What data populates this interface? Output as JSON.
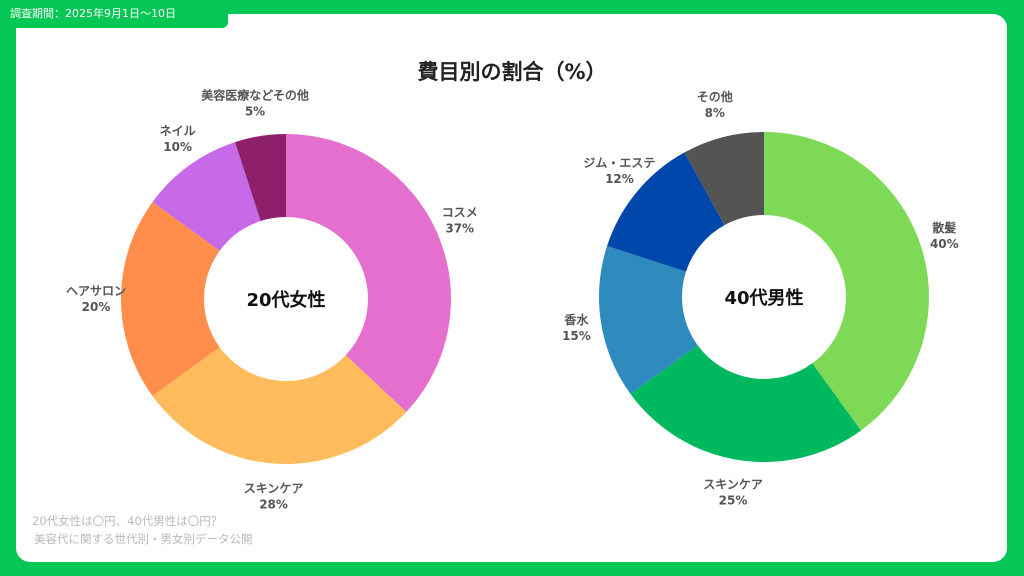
{
  "header": {
    "survey_period": "調査期間：2025年9月1日〜10日",
    "title": "費目別の割合（%）"
  },
  "footer": {
    "line1": "20代女性は〇円、40代男性は〇円？",
    "line2": "美容代に関する世代別・男女別データ公開"
  },
  "chart_data": [
    {
      "type": "pie",
      "title": "20代女性",
      "categories": [
        "コスメ",
        "スキンケア",
        "ヘアサロン",
        "ネイル",
        "美容医療などその他"
      ],
      "values": [
        37,
        28,
        20,
        10,
        5
      ],
      "value_labels": [
        "37%",
        "28%",
        "20%",
        "10%",
        "5%"
      ],
      "colors": [
        "#e56fcf",
        "#ffbb5c",
        "#ff8e4d",
        "#c76ae8",
        "#8e1f6b"
      ],
      "donut": true
    },
    {
      "type": "pie",
      "title": "40代男性",
      "categories": [
        "散髪",
        "スキンケア",
        "香水",
        "ジム・エステ",
        "その他"
      ],
      "values": [
        40,
        25,
        15,
        12,
        8
      ],
      "value_labels": [
        "40%",
        "25%",
        "15%",
        "12%",
        "8%"
      ],
      "colors": [
        "#7ed957",
        "#00b85e",
        "#2f8bbd",
        "#0047ab",
        "#545454"
      ],
      "donut": true
    }
  ]
}
